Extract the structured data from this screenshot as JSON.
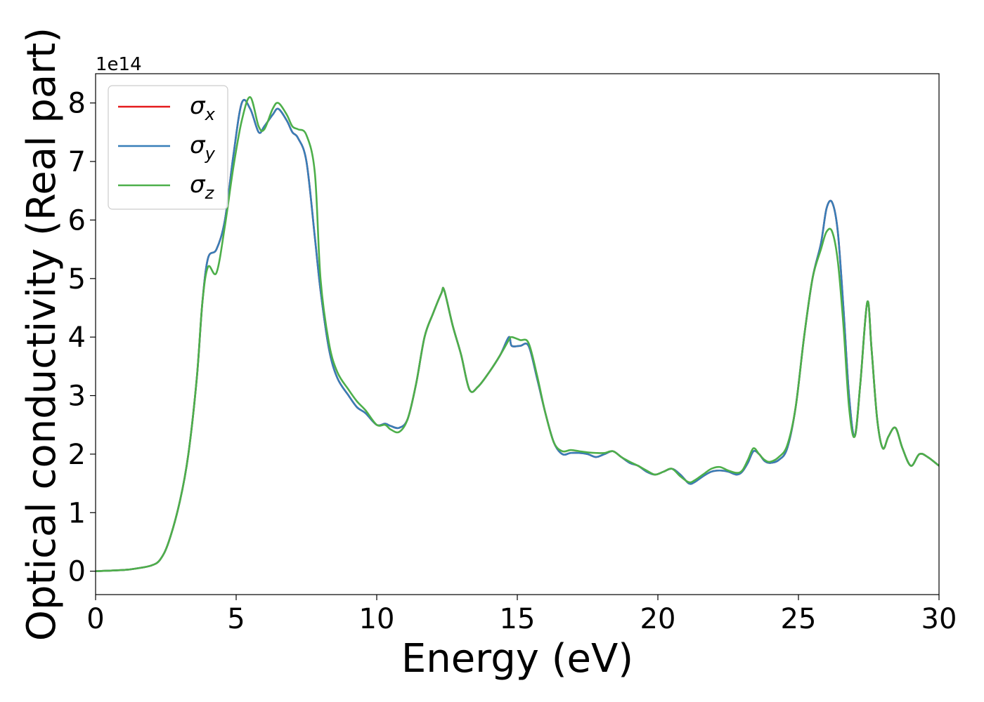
{
  "chart_data": {
    "type": "line",
    "xlabel": "Energy (eV)",
    "ylabel": "Optical conductivity (Real part)",
    "y_offset_text": "1e14",
    "xlim": [
      0,
      30
    ],
    "ylim": [
      -0.4,
      8.5
    ],
    "y_unit_multiplier": 100000000000000.0,
    "grid": false,
    "legend_position": "upper-left",
    "x_ticks": [
      0,
      5,
      10,
      15,
      20,
      25,
      30
    ],
    "y_ticks": [
      0,
      1,
      2,
      3,
      4,
      5,
      6,
      7,
      8
    ],
    "series": [
      {
        "name": "σx",
        "symbol": "σ",
        "subscript": "x",
        "color": "#e41a1c",
        "x": [
          0,
          1,
          1.5,
          2,
          2.3,
          2.6,
          3,
          3.3,
          3.6,
          3.8,
          4,
          4.3,
          4.6,
          4.9,
          5.2,
          5.5,
          5.8,
          6,
          6.3,
          6.5,
          6.8,
          7,
          7.2,
          7.5,
          7.8,
          8,
          8.3,
          8.6,
          9,
          9.3,
          9.6,
          10,
          10.3,
          10.5,
          10.8,
          11.1,
          11.4,
          11.7,
          12,
          12.3,
          12.4,
          12.7,
          13,
          13.3,
          13.6,
          14,
          14.4,
          14.7,
          14.8,
          15.1,
          15.4,
          15.7,
          16,
          16.3,
          16.6,
          16.9,
          17.2,
          17.5,
          17.8,
          18.1,
          18.4,
          18.7,
          19,
          19.3,
          19.6,
          19.9,
          20.2,
          20.5,
          20.8,
          21.1,
          21.3,
          21.6,
          21.9,
          22.2,
          22.5,
          22.8,
          23,
          23.2,
          23.4,
          23.6,
          23.8,
          24,
          24.3,
          24.6,
          24.9,
          25.2,
          25.5,
          25.8,
          26,
          26.2,
          26.4,
          26.6,
          26.8,
          27,
          27.2,
          27.45,
          27.6,
          27.8,
          28,
          28.2,
          28.45,
          28.7,
          29,
          29.3,
          29.6,
          30
        ],
        "values": [
          0,
          0.02,
          0.05,
          0.1,
          0.2,
          0.5,
          1.2,
          2,
          3.3,
          4.6,
          5.35,
          5.5,
          6,
          7.1,
          8,
          7.9,
          7.5,
          7.6,
          7.8,
          7.9,
          7.7,
          7.5,
          7.4,
          7,
          5.7,
          4.8,
          3.8,
          3.3,
          3,
          2.8,
          2.7,
          2.5,
          2.52,
          2.48,
          2.45,
          2.6,
          3.2,
          4,
          4.4,
          4.75,
          4.8,
          4.2,
          3.7,
          3.1,
          3.15,
          3.4,
          3.7,
          4,
          3.85,
          3.85,
          3.85,
          3.3,
          2.7,
          2.2,
          2,
          2.02,
          2.02,
          2,
          1.95,
          2,
          2.05,
          1.95,
          1.85,
          1.8,
          1.7,
          1.65,
          1.7,
          1.75,
          1.65,
          1.5,
          1.52,
          1.62,
          1.7,
          1.72,
          1.7,
          1.65,
          1.7,
          1.85,
          2.05,
          2,
          1.88,
          1.85,
          1.9,
          2.1,
          2.8,
          4,
          5,
          5.6,
          6.2,
          6.3,
          5.8,
          4.5,
          3,
          2.3,
          3.2,
          4.6,
          3.8,
          2.6,
          2.1,
          2.3,
          2.45,
          2.1,
          1.8,
          2,
          1.95,
          1.8
        ]
      },
      {
        "name": "σy",
        "symbol": "σ",
        "subscript": "y",
        "color": "#377eb8",
        "x": [
          0,
          1,
          1.5,
          2,
          2.3,
          2.6,
          3,
          3.3,
          3.6,
          3.8,
          4,
          4.3,
          4.6,
          4.9,
          5.2,
          5.5,
          5.8,
          6,
          6.3,
          6.5,
          6.8,
          7,
          7.2,
          7.5,
          7.8,
          8,
          8.3,
          8.6,
          9,
          9.3,
          9.6,
          10,
          10.3,
          10.5,
          10.8,
          11.1,
          11.4,
          11.7,
          12,
          12.3,
          12.4,
          12.7,
          13,
          13.3,
          13.6,
          14,
          14.4,
          14.7,
          14.8,
          15.1,
          15.4,
          15.7,
          16,
          16.3,
          16.6,
          16.9,
          17.2,
          17.5,
          17.8,
          18.1,
          18.4,
          18.7,
          19,
          19.3,
          19.6,
          19.9,
          20.2,
          20.5,
          20.8,
          21.1,
          21.3,
          21.6,
          21.9,
          22.2,
          22.5,
          22.8,
          23,
          23.2,
          23.4,
          23.6,
          23.8,
          24,
          24.3,
          24.6,
          24.9,
          25.2,
          25.5,
          25.8,
          26,
          26.2,
          26.4,
          26.6,
          26.8,
          27,
          27.2,
          27.45,
          27.6,
          27.8,
          28,
          28.2,
          28.45,
          28.7,
          29,
          29.3,
          29.6,
          30
        ],
        "values": [
          0,
          0.02,
          0.05,
          0.1,
          0.2,
          0.5,
          1.2,
          2,
          3.3,
          4.6,
          5.35,
          5.5,
          6,
          7.1,
          8,
          7.9,
          7.5,
          7.6,
          7.8,
          7.9,
          7.7,
          7.5,
          7.4,
          7,
          5.7,
          4.8,
          3.8,
          3.3,
          3,
          2.8,
          2.7,
          2.5,
          2.52,
          2.48,
          2.45,
          2.6,
          3.2,
          4,
          4.4,
          4.75,
          4.8,
          4.2,
          3.7,
          3.1,
          3.15,
          3.4,
          3.7,
          4,
          3.85,
          3.85,
          3.85,
          3.3,
          2.7,
          2.2,
          2,
          2.02,
          2.02,
          2,
          1.95,
          2,
          2.05,
          1.95,
          1.85,
          1.8,
          1.7,
          1.65,
          1.7,
          1.75,
          1.65,
          1.5,
          1.52,
          1.62,
          1.7,
          1.72,
          1.7,
          1.65,
          1.7,
          1.85,
          2.05,
          2,
          1.88,
          1.85,
          1.9,
          2.1,
          2.8,
          4,
          5,
          5.6,
          6.2,
          6.3,
          5.8,
          4.5,
          3,
          2.3,
          3.2,
          4.6,
          3.8,
          2.6,
          2.1,
          2.3,
          2.45,
          2.1,
          1.8,
          2,
          1.95,
          1.8
        ]
      },
      {
        "name": "σz",
        "symbol": "σ",
        "subscript": "z",
        "color": "#4daf4a",
        "x": [
          0,
          1,
          1.5,
          2,
          2.3,
          2.6,
          3,
          3.3,
          3.6,
          3.8,
          4,
          4.3,
          4.6,
          4.9,
          5.2,
          5.5,
          5.8,
          6,
          6.3,
          6.5,
          6.8,
          7,
          7.2,
          7.5,
          7.8,
          8,
          8.3,
          8.6,
          9,
          9.3,
          9.6,
          10,
          10.3,
          10.5,
          10.8,
          11.1,
          11.4,
          11.7,
          12,
          12.3,
          12.4,
          12.7,
          13,
          13.3,
          13.6,
          14,
          14.4,
          14.7,
          14.8,
          15.1,
          15.4,
          15.7,
          16,
          16.3,
          16.6,
          16.9,
          17.2,
          17.5,
          17.8,
          18.1,
          18.4,
          18.7,
          19,
          19.3,
          19.6,
          19.9,
          20.2,
          20.5,
          20.8,
          21.1,
          21.3,
          21.6,
          21.9,
          22.2,
          22.5,
          22.8,
          23,
          23.2,
          23.4,
          23.6,
          23.8,
          24,
          24.3,
          24.6,
          24.9,
          25.2,
          25.5,
          25.8,
          26,
          26.2,
          26.4,
          26.6,
          26.8,
          27,
          27.2,
          27.45,
          27.6,
          27.8,
          28,
          28.2,
          28.45,
          28.7,
          29,
          29.3,
          29.6,
          30
        ],
        "values": [
          0,
          0.02,
          0.05,
          0.1,
          0.2,
          0.5,
          1.2,
          2,
          3.3,
          4.6,
          5.2,
          5.1,
          5.9,
          6.9,
          7.7,
          8.1,
          7.6,
          7.55,
          7.9,
          8,
          7.8,
          7.6,
          7.55,
          7.45,
          6.8,
          5,
          3.9,
          3.4,
          3.1,
          2.9,
          2.75,
          2.5,
          2.5,
          2.42,
          2.38,
          2.6,
          3.2,
          4,
          4.4,
          4.75,
          4.8,
          4.2,
          3.7,
          3.1,
          3.15,
          3.4,
          3.7,
          3.95,
          4,
          3.95,
          3.9,
          3.35,
          2.7,
          2.2,
          2.05,
          2.07,
          2.05,
          2.03,
          2.02,
          2.02,
          2.05,
          1.95,
          1.87,
          1.8,
          1.72,
          1.65,
          1.7,
          1.75,
          1.62,
          1.52,
          1.55,
          1.65,
          1.75,
          1.78,
          1.72,
          1.68,
          1.72,
          1.9,
          2.1,
          2,
          1.9,
          1.87,
          1.95,
          2.15,
          2.8,
          4,
          5,
          5.5,
          5.8,
          5.8,
          5.3,
          4.2,
          2.8,
          2.3,
          3.2,
          4.6,
          3.8,
          2.6,
          2.1,
          2.3,
          2.45,
          2.1,
          1.8,
          2,
          1.95,
          1.8
        ]
      }
    ]
  }
}
